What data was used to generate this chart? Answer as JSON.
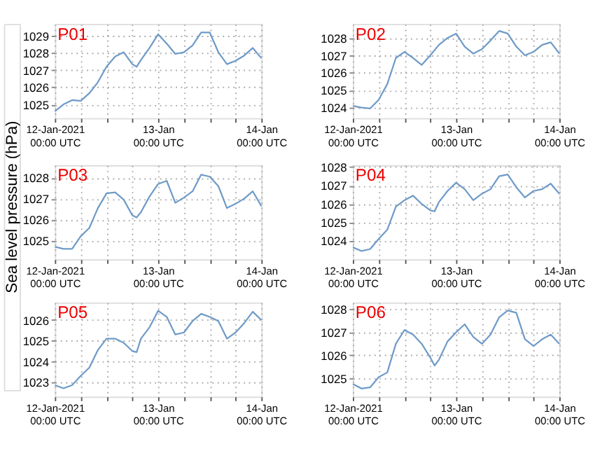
{
  "chart_data": [
    {
      "type": "line",
      "title": "P01",
      "x": [
        "2021-01-12T00:00",
        "2021-01-12T02:00",
        "2021-01-12T04:00",
        "2021-01-12T06:00",
        "2021-01-12T08:00",
        "2021-01-12T10:00",
        "2021-01-12T12:00",
        "2021-01-12T14:00",
        "2021-01-12T16:00",
        "2021-01-12T18:00",
        "2021-01-12T19:00",
        "2021-01-12T20:00",
        "2021-01-12T22:00",
        "2021-01-13T00:00",
        "2021-01-13T02:00",
        "2021-01-13T04:00",
        "2021-01-13T06:00",
        "2021-01-13T08:00",
        "2021-01-13T10:00",
        "2021-01-13T12:00",
        "2021-01-13T14:00",
        "2021-01-13T16:00",
        "2021-01-13T18:00",
        "2021-01-13T20:00",
        "2021-01-13T22:00",
        "2021-01-14T00:00"
      ],
      "series": [
        {
          "color": "#6f9bc8",
          "values": [
            1024.6,
            1025.0,
            1025.25,
            1025.2,
            1025.65,
            1026.3,
            1027.2,
            1027.8,
            1028.05,
            1027.35,
            1027.2,
            1027.6,
            1028.3,
            1029.1,
            1028.55,
            1027.95,
            1028.05,
            1028.45,
            1029.2,
            1029.2,
            1028.05,
            1027.35,
            1027.55,
            1027.85,
            1028.3,
            1027.7
          ]
        }
      ],
      "xlim": [
        "2021-01-12T00:00",
        "2021-01-14T00:00"
      ],
      "ylim": [
        1024.2,
        1029.7
      ],
      "yticks": [
        1025,
        1026,
        1027,
        1028,
        1029
      ],
      "xticks": [
        {
          "value": "2021-01-12T00:00",
          "label": "12-Jan-2021\n00:00 UTC"
        },
        {
          "value": "2021-01-12T06:00",
          "label": null
        },
        {
          "value": "2021-01-12T12:00",
          "label": null
        },
        {
          "value": "2021-01-12T18:00",
          "label": null
        },
        {
          "value": "2021-01-13T00:00",
          "label": "13-Jan\n00:00 UTC"
        },
        {
          "value": "2021-01-13T06:00",
          "label": null
        },
        {
          "value": "2021-01-13T12:00",
          "label": null
        },
        {
          "value": "2021-01-13T18:00",
          "label": null
        },
        {
          "value": "2021-01-14T00:00",
          "label": "14-Jan\n00:00 UTC"
        }
      ],
      "grid": true
    },
    {
      "type": "line",
      "title": "P02",
      "x": [
        "2021-01-12T00:00",
        "2021-01-12T02:00",
        "2021-01-12T04:00",
        "2021-01-12T06:00",
        "2021-01-12T08:00",
        "2021-01-12T10:00",
        "2021-01-12T12:00",
        "2021-01-12T14:00",
        "2021-01-12T16:00",
        "2021-01-12T18:00",
        "2021-01-12T20:00",
        "2021-01-12T22:00",
        "2021-01-13T00:00",
        "2021-01-13T02:00",
        "2021-01-13T04:00",
        "2021-01-13T06:00",
        "2021-01-13T08:00",
        "2021-01-13T10:00",
        "2021-01-13T12:00",
        "2021-01-13T14:00",
        "2021-01-13T16:00",
        "2021-01-13T18:00",
        "2021-01-13T20:00",
        "2021-01-13T22:00",
        "2021-01-14T00:00"
      ],
      "series": [
        {
          "color": "#6f9bc8",
          "values": [
            1024.1,
            1024.0,
            1023.95,
            1024.45,
            1025.35,
            1026.85,
            1027.2,
            1026.85,
            1026.45,
            1027.0,
            1027.6,
            1028.0,
            1028.25,
            1027.5,
            1027.1,
            1027.35,
            1027.85,
            1028.4,
            1028.25,
            1027.5,
            1027.0,
            1027.2,
            1027.6,
            1027.75,
            1027.1
          ]
        }
      ],
      "xlim": [
        "2021-01-12T00:00",
        "2021-01-14T00:00"
      ],
      "ylim": [
        1023.4,
        1028.8
      ],
      "yticks": [
        1024,
        1025,
        1026,
        1027,
        1028
      ],
      "xticks": [
        {
          "value": "2021-01-12T00:00",
          "label": "12-Jan-2021\n00:00 UTC"
        },
        {
          "value": "2021-01-12T06:00",
          "label": null
        },
        {
          "value": "2021-01-12T12:00",
          "label": null
        },
        {
          "value": "2021-01-12T18:00",
          "label": null
        },
        {
          "value": "2021-01-13T00:00",
          "label": "13-Jan\n00:00 UTC"
        },
        {
          "value": "2021-01-13T06:00",
          "label": null
        },
        {
          "value": "2021-01-13T12:00",
          "label": null
        },
        {
          "value": "2021-01-13T18:00",
          "label": null
        },
        {
          "value": "2021-01-14T00:00",
          "label": "14-Jan\n00:00 UTC"
        }
      ],
      "grid": true
    },
    {
      "type": "line",
      "title": "P03",
      "ylabel": "Sea level pressure (hPa)",
      "x": [
        "2021-01-12T00:00",
        "2021-01-12T02:00",
        "2021-01-12T04:00",
        "2021-01-12T06:00",
        "2021-01-12T08:00",
        "2021-01-12T10:00",
        "2021-01-12T12:00",
        "2021-01-12T14:00",
        "2021-01-12T16:00",
        "2021-01-12T18:00",
        "2021-01-12T19:00",
        "2021-01-12T20:00",
        "2021-01-12T22:00",
        "2021-01-13T00:00",
        "2021-01-13T02:00",
        "2021-01-13T04:00",
        "2021-01-13T06:00",
        "2021-01-13T08:00",
        "2021-01-13T10:00",
        "2021-01-13T12:00",
        "2021-01-13T14:00",
        "2021-01-13T16:00",
        "2021-01-13T18:00",
        "2021-01-13T20:00",
        "2021-01-13T22:00",
        "2021-01-14T00:00"
      ],
      "series": [
        {
          "color": "#6f9bc8",
          "values": [
            1024.7,
            1024.6,
            1024.6,
            1025.2,
            1025.6,
            1026.55,
            1027.25,
            1027.3,
            1026.95,
            1026.2,
            1026.1,
            1026.35,
            1027.1,
            1027.7,
            1027.85,
            1026.8,
            1027.05,
            1027.35,
            1028.15,
            1028.05,
            1027.6,
            1026.55,
            1026.75,
            1027.0,
            1027.35,
            1026.65
          ]
        }
      ],
      "xlim": [
        "2021-01-12T00:00",
        "2021-01-14T00:00"
      ],
      "ylim": [
        1024.1,
        1028.6
      ],
      "yticks": [
        1025,
        1026,
        1027,
        1028
      ],
      "xticks": [
        {
          "value": "2021-01-12T00:00",
          "label": "12-Jan-2021\n00:00 UTC"
        },
        {
          "value": "2021-01-12T06:00",
          "label": null
        },
        {
          "value": "2021-01-12T12:00",
          "label": null
        },
        {
          "value": "2021-01-12T18:00",
          "label": null
        },
        {
          "value": "2021-01-13T00:00",
          "label": "13-Jan\n00:00 UTC"
        },
        {
          "value": "2021-01-13T06:00",
          "label": null
        },
        {
          "value": "2021-01-13T12:00",
          "label": null
        },
        {
          "value": "2021-01-13T18:00",
          "label": null
        },
        {
          "value": "2021-01-14T00:00",
          "label": "14-Jan\n00:00 UTC"
        }
      ],
      "grid": true
    },
    {
      "type": "line",
      "title": "P04",
      "x": [
        "2021-01-12T00:00",
        "2021-01-12T02:00",
        "2021-01-12T04:00",
        "2021-01-12T06:00",
        "2021-01-12T08:00",
        "2021-01-12T10:00",
        "2021-01-12T12:00",
        "2021-01-12T14:00",
        "2021-01-12T16:00",
        "2021-01-12T18:00",
        "2021-01-12T19:00",
        "2021-01-12T20:00",
        "2021-01-12T22:00",
        "2021-01-13T00:00",
        "2021-01-13T02:00",
        "2021-01-13T04:00",
        "2021-01-13T06:00",
        "2021-01-13T08:00",
        "2021-01-13T10:00",
        "2021-01-13T12:00",
        "2021-01-13T14:00",
        "2021-01-13T16:00",
        "2021-01-13T18:00",
        "2021-01-13T20:00",
        "2021-01-13T22:00",
        "2021-01-14T00:00"
      ],
      "series": [
        {
          "color": "#6f9bc8",
          "values": [
            1023.65,
            1023.45,
            1023.55,
            1024.1,
            1024.6,
            1025.85,
            1026.2,
            1026.45,
            1026.0,
            1025.65,
            1025.6,
            1026.1,
            1026.7,
            1027.15,
            1026.8,
            1026.2,
            1026.55,
            1026.8,
            1027.5,
            1027.6,
            1026.9,
            1026.35,
            1026.7,
            1026.8,
            1027.1,
            1026.55
          ]
        }
      ],
      "xlim": [
        "2021-01-12T00:00",
        "2021-01-14T00:00"
      ],
      "ylim": [
        1023.0,
        1028.1
      ],
      "yticks": [
        1024,
        1025,
        1026,
        1027,
        1028
      ],
      "xticks": [
        {
          "value": "2021-01-12T00:00",
          "label": "12-Jan-2021\n00:00 UTC"
        },
        {
          "value": "2021-01-12T06:00",
          "label": null
        },
        {
          "value": "2021-01-12T12:00",
          "label": null
        },
        {
          "value": "2021-01-12T18:00",
          "label": null
        },
        {
          "value": "2021-01-13T00:00",
          "label": "13-Jan\n00:00 UTC"
        },
        {
          "value": "2021-01-13T06:00",
          "label": null
        },
        {
          "value": "2021-01-13T12:00",
          "label": null
        },
        {
          "value": "2021-01-13T18:00",
          "label": null
        },
        {
          "value": "2021-01-14T00:00",
          "label": "14-Jan\n00:00 UTC"
        }
      ],
      "grid": true
    },
    {
      "type": "line",
      "title": "P05",
      "x": [
        "2021-01-12T00:00",
        "2021-01-12T02:00",
        "2021-01-12T04:00",
        "2021-01-12T06:00",
        "2021-01-12T08:00",
        "2021-01-12T10:00",
        "2021-01-12T12:00",
        "2021-01-12T14:00",
        "2021-01-12T16:00",
        "2021-01-12T18:00",
        "2021-01-12T19:00",
        "2021-01-12T20:00",
        "2021-01-12T22:00",
        "2021-01-13T00:00",
        "2021-01-13T02:00",
        "2021-01-13T04:00",
        "2021-01-13T06:00",
        "2021-01-13T08:00",
        "2021-01-13T10:00",
        "2021-01-13T12:00",
        "2021-01-13T14:00",
        "2021-01-13T16:00",
        "2021-01-13T18:00",
        "2021-01-13T20:00",
        "2021-01-13T22:00",
        "2021-01-14T00:00"
      ],
      "series": [
        {
          "color": "#6f9bc8",
          "values": [
            1022.85,
            1022.7,
            1022.85,
            1023.3,
            1023.7,
            1024.55,
            1025.1,
            1025.1,
            1024.9,
            1024.5,
            1024.45,
            1025.1,
            1025.65,
            1026.45,
            1026.15,
            1025.3,
            1025.4,
            1025.95,
            1026.3,
            1026.15,
            1025.95,
            1025.1,
            1025.4,
            1025.85,
            1026.4,
            1026.0
          ]
        }
      ],
      "xlim": [
        "2021-01-12T00:00",
        "2021-01-14T00:00"
      ],
      "ylim": [
        1022.3,
        1026.85
      ],
      "yticks": [
        1023,
        1024,
        1025,
        1026
      ],
      "xticks": [
        {
          "value": "2021-01-12T00:00",
          "label": "12-Jan-2021\n00:00 UTC"
        },
        {
          "value": "2021-01-12T06:00",
          "label": null
        },
        {
          "value": "2021-01-12T12:00",
          "label": null
        },
        {
          "value": "2021-01-12T18:00",
          "label": null
        },
        {
          "value": "2021-01-13T00:00",
          "label": "13-Jan\n00:00 UTC"
        },
        {
          "value": "2021-01-13T06:00",
          "label": null
        },
        {
          "value": "2021-01-13T12:00",
          "label": null
        },
        {
          "value": "2021-01-13T18:00",
          "label": null
        },
        {
          "value": "2021-01-14T00:00",
          "label": "14-Jan\n00:00 UTC"
        }
      ],
      "grid": true
    },
    {
      "type": "line",
      "title": "P06",
      "x": [
        "2021-01-12T00:00",
        "2021-01-12T02:00",
        "2021-01-12T04:00",
        "2021-01-12T06:00",
        "2021-01-12T08:00",
        "2021-01-12T10:00",
        "2021-01-12T12:00",
        "2021-01-12T14:00",
        "2021-01-12T16:00",
        "2021-01-12T18:00",
        "2021-01-12T19:00",
        "2021-01-12T20:00",
        "2021-01-12T22:00",
        "2021-01-13T00:00",
        "2021-01-13T02:00",
        "2021-01-13T04:00",
        "2021-01-13T06:00",
        "2021-01-13T08:00",
        "2021-01-13T10:00",
        "2021-01-13T12:00",
        "2021-01-13T14:00",
        "2021-01-13T16:00",
        "2021-01-13T18:00",
        "2021-01-13T20:00",
        "2021-01-13T22:00",
        "2021-01-14T00:00"
      ],
      "series": [
        {
          "color": "#6f9bc8",
          "values": [
            1024.75,
            1024.55,
            1024.6,
            1025.05,
            1025.25,
            1026.5,
            1027.1,
            1026.9,
            1026.5,
            1025.9,
            1025.55,
            1025.8,
            1026.6,
            1027.0,
            1027.35,
            1026.8,
            1026.5,
            1026.9,
            1027.65,
            1027.95,
            1027.85,
            1026.7,
            1026.4,
            1026.7,
            1026.9,
            1026.5
          ]
        }
      ],
      "xlim": [
        "2021-01-12T00:00",
        "2021-01-14T00:00"
      ],
      "ylim": [
        1024.2,
        1028.3
      ],
      "yticks": [
        1025,
        1026,
        1027,
        1028
      ],
      "xticks": [
        {
          "value": "2021-01-12T00:00",
          "label": "12-Jan-2021\n00:00 UTC"
        },
        {
          "value": "2021-01-12T06:00",
          "label": null
        },
        {
          "value": "2021-01-12T12:00",
          "label": null
        },
        {
          "value": "2021-01-12T18:00",
          "label": null
        },
        {
          "value": "2021-01-13T00:00",
          "label": "13-Jan\n00:00 UTC"
        },
        {
          "value": "2021-01-13T06:00",
          "label": null
        },
        {
          "value": "2021-01-13T12:00",
          "label": null
        },
        {
          "value": "2021-01-13T18:00",
          "label": null
        },
        {
          "value": "2021-01-14T00:00",
          "label": "14-Jan\n00:00 UTC"
        }
      ],
      "grid": true
    }
  ]
}
